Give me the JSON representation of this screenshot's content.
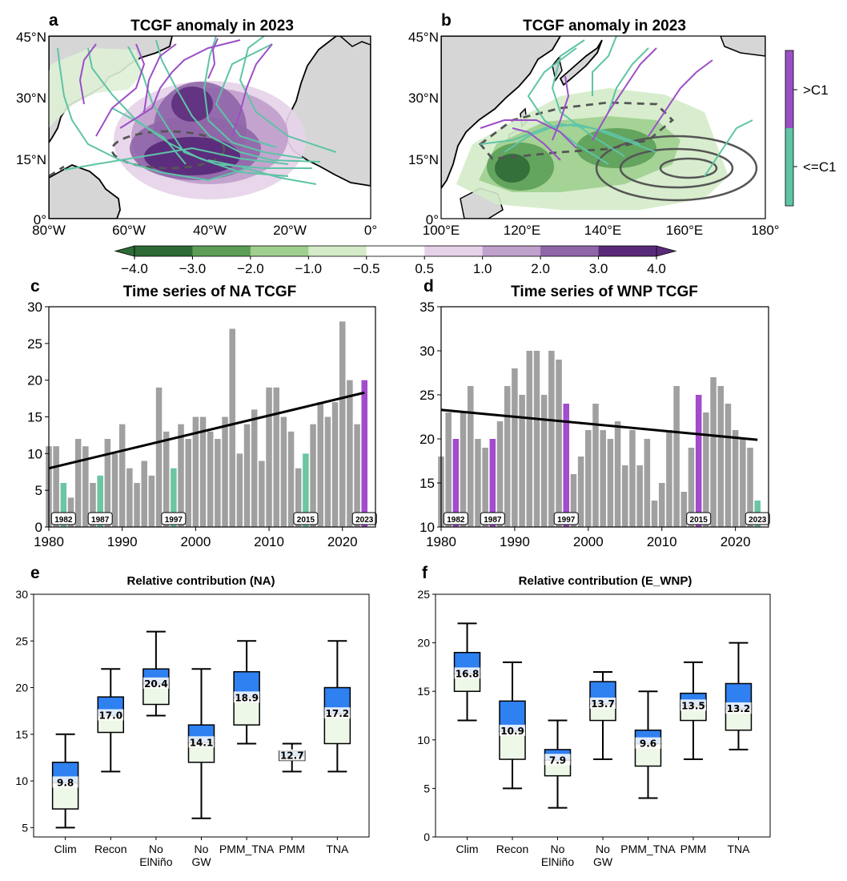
{
  "panels": {
    "a": {
      "letter": "a",
      "title": "TCGF anomaly in 2023",
      "lat_ticks": [
        "45°N",
        "30°N",
        "15°N",
        "0°"
      ],
      "lon_ticks": [
        "80°W",
        "60°W",
        "40°W",
        "20°W",
        "0°"
      ]
    },
    "b": {
      "letter": "b",
      "title": "TCGF anomaly in 2023",
      "lat_ticks": [
        "45°N",
        "30°N",
        "15°N",
        "0°"
      ],
      "lon_ticks": [
        "100°E",
        "120°E",
        "140°E",
        "160°E",
        "180°"
      ]
    }
  },
  "track_legend": {
    "labels": [
      ">C1",
      "<=C1"
    ],
    "colors": [
      "#9b4fc7",
      "#5ec4a6"
    ]
  },
  "colorbar": {
    "ticks": [
      "−4.0",
      "−3.0",
      "−2.0",
      "−1.0",
      "−0.5",
      "0.5",
      "1.0",
      "2.0",
      "3.0",
      "4.0"
    ],
    "colors": [
      "#2d6a36",
      "#5c9e58",
      "#9fcf8f",
      "#d4ebc8",
      "#ffffff",
      "#e6d2e8",
      "#c0a0cc",
      "#8f66a8",
      "#5a2a7a"
    ]
  },
  "colors": {
    "bar_gray": "#a0a0a0",
    "highlight_purple": "#a24bcc",
    "highlight_green": "#6cc5a3",
    "box_blue": "#2f80f0",
    "box_green": "#eef8e8"
  },
  "chart_data": [
    {
      "id": "c",
      "type": "bar",
      "letter": "c",
      "title": "Time series of NA TCGF",
      "x_start": 1980,
      "values": [
        11,
        11,
        6,
        4,
        12,
        11,
        6,
        7,
        12,
        10,
        14,
        8,
        6,
        9,
        7,
        19,
        13,
        8,
        14,
        12,
        15,
        15,
        13,
        12,
        15,
        27,
        10,
        14,
        16,
        9,
        19,
        19,
        15,
        13,
        8,
        10,
        14,
        17,
        15,
        17,
        28,
        20,
        14,
        20
      ],
      "highlight": {
        "1982": "green",
        "1987": "green",
        "1997": "green",
        "2015": "green",
        "2023": "purple"
      },
      "event_labels": [
        "1982",
        "1987",
        "1997",
        "2015",
        "2023"
      ],
      "trend": {
        "x": [
          1980,
          2023
        ],
        "y": [
          8.0,
          18.3
        ]
      },
      "ylim": [
        0,
        30
      ],
      "yticks": [
        "0",
        "5",
        "10",
        "15",
        "20",
        "25",
        "30"
      ],
      "xlim": [
        1980,
        2024.5
      ],
      "xticks": [
        "1980",
        "1990",
        "2000",
        "2010",
        "2020"
      ]
    },
    {
      "id": "d",
      "type": "bar",
      "letter": "d",
      "title": "Time series of WNP TCGF",
      "x_start": 1980,
      "values": [
        18,
        23,
        20,
        23,
        26,
        20,
        19,
        20,
        22,
        26,
        28,
        25,
        30,
        30,
        25,
        30,
        29,
        24,
        16,
        18,
        21,
        24,
        21,
        20,
        22,
        17,
        21,
        17,
        20,
        13,
        15,
        21,
        26,
        14,
        19,
        25,
        23,
        27,
        26,
        24,
        21,
        20,
        19,
        13
      ],
      "highlight": {
        "1982": "purple",
        "1987": "purple",
        "1997": "purple",
        "2015": "purple",
        "2023": "green"
      },
      "event_labels": [
        "1982",
        "1987",
        "1997",
        "2015",
        "2023"
      ],
      "trend": {
        "x": [
          1980,
          2023
        ],
        "y": [
          23.3,
          19.9
        ]
      },
      "ylim": [
        10,
        35
      ],
      "yticks": [
        "10",
        "15",
        "20",
        "25",
        "30",
        "35"
      ],
      "xlim": [
        1980,
        2024.5
      ],
      "xticks": [
        "1980",
        "1990",
        "2000",
        "2010",
        "2020"
      ]
    },
    {
      "id": "e",
      "type": "box",
      "letter": "e",
      "title": "Relative contribution (NA)",
      "categories": [
        "Clim",
        "Recon",
        "No ElNiño",
        "No GW",
        "PMM_TNA",
        "PMM",
        "TNA"
      ],
      "boxes": [
        {
          "whislo": 5,
          "q1": 7,
          "med": 9.8,
          "q3": 12,
          "whishi": 15
        },
        {
          "whislo": 11,
          "q1": 15.2,
          "med": 17.0,
          "q3": 19,
          "whishi": 22
        },
        {
          "whislo": 17,
          "q1": 18.2,
          "med": 20.4,
          "q3": 22,
          "whishi": 26
        },
        {
          "whislo": 6,
          "q1": 12,
          "med": 14.1,
          "q3": 16,
          "whishi": 22
        },
        {
          "whislo": 14,
          "q1": 16,
          "med": 18.9,
          "q3": 21.7,
          "whishi": 25
        },
        {
          "whislo": 11,
          "q1": 12.2,
          "med": 12.7,
          "q3": 13.2,
          "whishi": 14
        },
        {
          "whislo": 11,
          "q1": 14,
          "med": 17.2,
          "q3": 20,
          "whishi": 25
        }
      ],
      "med_labels": [
        "9.8",
        "17.0",
        "20.4",
        "14.1",
        "18.9",
        "12.7",
        "17.2"
      ],
      "ylim": [
        4,
        30
      ],
      "yticks": [
        "5",
        "10",
        "15",
        "20",
        "25",
        "30"
      ]
    },
    {
      "id": "f",
      "type": "box",
      "letter": "f",
      "title": "Relative contribution (E_WNP)",
      "categories": [
        "Clim",
        "Recon",
        "No ElNiño",
        "No GW",
        "PMM_TNA",
        "PMM",
        "TNA"
      ],
      "boxes": [
        {
          "whislo": 12,
          "q1": 15,
          "med": 16.8,
          "q3": 19,
          "whishi": 22
        },
        {
          "whislo": 5,
          "q1": 8,
          "med": 10.9,
          "q3": 14,
          "whishi": 18
        },
        {
          "whislo": 3,
          "q1": 6.3,
          "med": 7.9,
          "q3": 9,
          "whishi": 12
        },
        {
          "whislo": 8,
          "q1": 12,
          "med": 13.7,
          "q3": 16,
          "whishi": 17
        },
        {
          "whislo": 4,
          "q1": 7.3,
          "med": 9.6,
          "q3": 11,
          "whishi": 15
        },
        {
          "whislo": 8,
          "q1": 12,
          "med": 13.5,
          "q3": 14.8,
          "whishi": 18
        },
        {
          "whislo": 9,
          "q1": 11,
          "med": 13.2,
          "q3": 15.8,
          "whishi": 20
        }
      ],
      "med_labels": [
        "16.8",
        "10.9",
        "7.9",
        "13.7",
        "9.6",
        "13.5",
        "13.2"
      ],
      "ylim": [
        0,
        25
      ],
      "yticks": [
        "0",
        "5",
        "10",
        "15",
        "20",
        "25"
      ]
    }
  ]
}
